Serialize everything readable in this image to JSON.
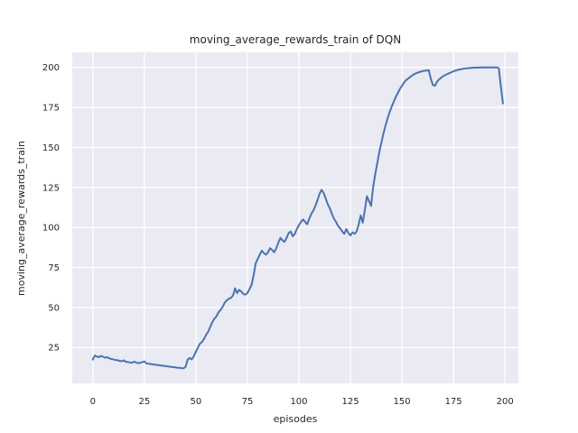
{
  "figure": {
    "background": "#ffffff"
  },
  "chart_data": {
    "type": "line",
    "title": "moving_average_rewards_train of DQN",
    "xlabel": "episodes",
    "ylabel": "moving_average_rewards_train",
    "legend": null,
    "grid": true,
    "x_ticks": [
      0,
      25,
      50,
      75,
      100,
      125,
      150,
      175,
      200
    ],
    "y_ticks": [
      25,
      50,
      75,
      100,
      125,
      150,
      175,
      200
    ],
    "xlim": [
      -10,
      206.5
    ],
    "ylim": [
      2.6,
      209.4
    ],
    "style": {
      "plot_bg": "#eaeaf2",
      "grid_color": "#ffffff",
      "line_color": "#4c72b0",
      "text_color": "#262626",
      "line_width": 2
    },
    "series": [
      {
        "name": "moving_average_rewards_train",
        "points": [
          [
            0,
            17.5
          ],
          [
            1,
            20
          ],
          [
            2,
            19.3
          ],
          [
            3,
            19
          ],
          [
            4,
            19.8
          ],
          [
            5,
            19.2
          ],
          [
            6,
            18.6
          ],
          [
            7,
            19
          ],
          [
            8,
            18.2
          ],
          [
            9,
            17.8
          ],
          [
            10,
            17.6
          ],
          [
            11,
            17.2
          ],
          [
            12,
            17
          ],
          [
            13,
            16.7
          ],
          [
            14,
            16.4
          ],
          [
            15,
            17
          ],
          [
            16,
            16.1
          ],
          [
            17,
            15.9
          ],
          [
            18,
            15.7
          ],
          [
            19,
            15.5
          ],
          [
            20,
            16.2
          ],
          [
            21,
            15.6
          ],
          [
            22,
            15.2
          ],
          [
            23,
            15.5
          ],
          [
            24,
            15.9
          ],
          [
            25,
            16.3
          ],
          [
            26,
            15.1
          ],
          [
            27,
            14.9
          ],
          [
            28,
            14.7
          ],
          [
            29,
            14.5
          ],
          [
            30,
            14.3
          ],
          [
            31,
            14.1
          ],
          [
            32,
            14
          ],
          [
            33,
            13.8
          ],
          [
            34,
            13.6
          ],
          [
            35,
            13.4
          ],
          [
            36,
            13.3
          ],
          [
            37,
            13.1
          ],
          [
            38,
            12.9
          ],
          [
            39,
            12.8
          ],
          [
            40,
            12.6
          ],
          [
            41,
            12.4
          ],
          [
            42,
            12.3
          ],
          [
            43,
            12.1
          ],
          [
            44,
            12
          ],
          [
            45,
            13
          ],
          [
            46,
            17.5
          ],
          [
            47,
            18.5
          ],
          [
            48,
            17.6
          ],
          [
            49,
            19.5
          ],
          [
            50,
            22.5
          ],
          [
            51,
            25
          ],
          [
            52,
            27.5
          ],
          [
            53,
            28.5
          ],
          [
            54,
            30.5
          ],
          [
            55,
            33
          ],
          [
            56,
            35
          ],
          [
            57,
            38
          ],
          [
            58,
            41
          ],
          [
            59,
            43
          ],
          [
            60,
            44.5
          ],
          [
            61,
            47
          ],
          [
            62,
            48.5
          ],
          [
            63,
            50.5
          ],
          [
            64,
            53
          ],
          [
            65,
            54.5
          ],
          [
            66,
            55.5
          ],
          [
            67,
            56
          ],
          [
            68,
            57.5
          ],
          [
            69,
            62
          ],
          [
            70,
            59
          ],
          [
            71,
            61
          ],
          [
            72,
            60
          ],
          [
            73,
            58.5
          ],
          [
            74,
            58
          ],
          [
            75,
            59
          ],
          [
            76,
            61.5
          ],
          [
            77,
            64
          ],
          [
            78,
            70
          ],
          [
            79,
            77.5
          ],
          [
            80,
            80.5
          ],
          [
            81,
            83
          ],
          [
            82,
            85.5
          ],
          [
            83,
            84
          ],
          [
            84,
            83
          ],
          [
            85,
            84.5
          ],
          [
            86,
            87
          ],
          [
            87,
            86
          ],
          [
            88,
            84.5
          ],
          [
            89,
            87
          ],
          [
            90,
            90.5
          ],
          [
            91,
            93.5
          ],
          [
            92,
            92
          ],
          [
            93,
            91
          ],
          [
            94,
            93.5
          ],
          [
            95,
            96.5
          ],
          [
            96,
            97.5
          ],
          [
            97,
            94.5
          ],
          [
            98,
            96
          ],
          [
            99,
            99
          ],
          [
            100,
            101.5
          ],
          [
            101,
            103.5
          ],
          [
            102,
            105
          ],
          [
            103,
            103.5
          ],
          [
            104,
            102
          ],
          [
            105,
            105.5
          ],
          [
            106,
            108.5
          ],
          [
            107,
            110.5
          ],
          [
            108,
            113.5
          ],
          [
            109,
            117
          ],
          [
            110,
            121
          ],
          [
            111,
            123.5
          ],
          [
            112,
            121.5
          ],
          [
            113,
            118
          ],
          [
            114,
            114.5
          ],
          [
            115,
            112
          ],
          [
            116,
            108.5
          ],
          [
            117,
            105.5
          ],
          [
            118,
            103.5
          ],
          [
            119,
            101
          ],
          [
            120,
            99.5
          ],
          [
            121,
            97.5
          ],
          [
            122,
            96
          ],
          [
            123,
            99
          ],
          [
            124,
            96.5
          ],
          [
            125,
            95
          ],
          [
            126,
            97
          ],
          [
            127,
            96
          ],
          [
            128,
            97.5
          ],
          [
            129,
            102
          ],
          [
            130,
            107.5
          ],
          [
            131,
            103
          ],
          [
            132,
            111
          ],
          [
            133,
            119.5
          ],
          [
            134,
            116.5
          ],
          [
            135,
            113.5
          ],
          [
            136,
            125
          ],
          [
            137,
            133
          ],
          [
            138,
            140
          ],
          [
            139,
            147
          ],
          [
            140,
            153
          ],
          [
            141,
            158.5
          ],
          [
            142,
            163.5
          ],
          [
            143,
            168
          ],
          [
            144,
            172
          ],
          [
            145,
            175.5
          ],
          [
            146,
            178.5
          ],
          [
            147,
            181.5
          ],
          [
            148,
            184
          ],
          [
            149,
            186.5
          ],
          [
            150,
            188.5
          ],
          [
            151,
            190.5
          ],
          [
            152,
            192
          ],
          [
            153,
            193
          ],
          [
            154,
            194
          ],
          [
            155,
            195
          ],
          [
            156,
            195.8
          ],
          [
            157,
            196.4
          ],
          [
            158,
            196.9
          ],
          [
            159,
            197.3
          ],
          [
            160,
            197.6
          ],
          [
            161,
            197.9
          ],
          [
            162,
            198.1
          ],
          [
            163,
            198.3
          ],
          [
            164,
            193
          ],
          [
            165,
            189
          ],
          [
            166,
            188.5
          ],
          [
            167,
            191
          ],
          [
            168,
            192.5
          ],
          [
            169,
            193.5
          ],
          [
            170,
            194.5
          ],
          [
            171,
            195.2
          ],
          [
            172,
            195.8
          ],
          [
            173,
            196.4
          ],
          [
            174,
            197
          ],
          [
            175,
            197.5
          ],
          [
            176,
            198
          ],
          [
            177,
            198.4
          ],
          [
            178,
            198.7
          ],
          [
            179,
            199
          ],
          [
            180,
            199.2
          ],
          [
            181,
            199.4
          ],
          [
            182,
            199.5
          ],
          [
            183,
            199.6
          ],
          [
            184,
            199.7
          ],
          [
            185,
            199.8
          ],
          [
            186,
            199.8
          ],
          [
            187,
            199.9
          ],
          [
            188,
            199.9
          ],
          [
            189,
            200
          ],
          [
            190,
            200
          ],
          [
            191,
            200
          ],
          [
            192,
            200
          ],
          [
            193,
            200
          ],
          [
            194,
            200
          ],
          [
            195,
            200
          ],
          [
            196,
            200
          ],
          [
            197,
            199.5
          ],
          [
            198,
            188
          ],
          [
            199,
            177.5
          ]
        ]
      }
    ]
  }
}
